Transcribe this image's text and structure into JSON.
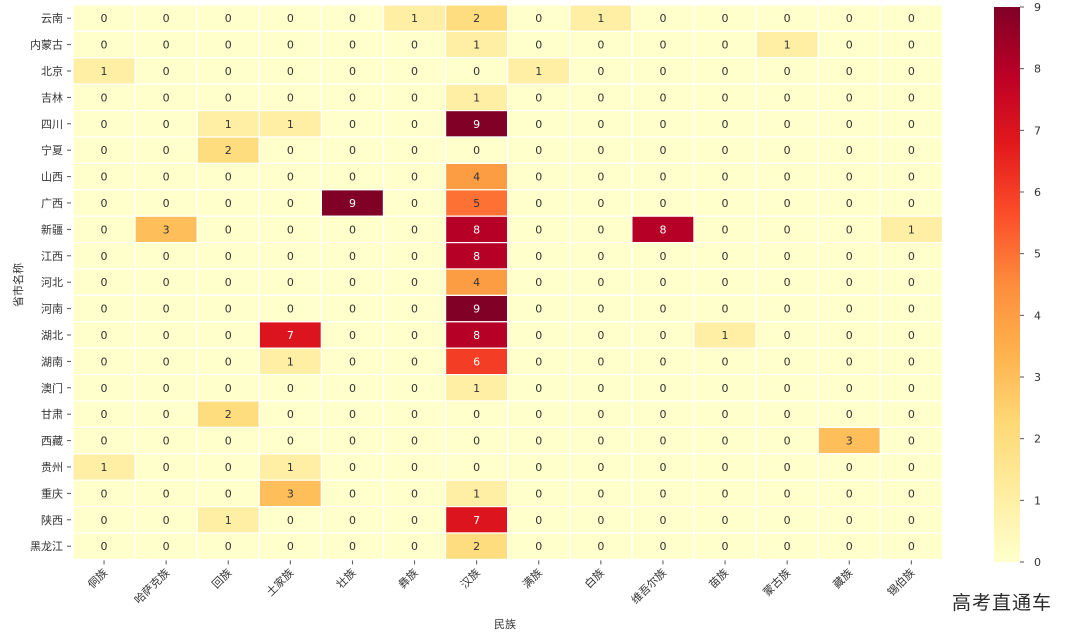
{
  "chart_data": {
    "type": "heatmap",
    "title": "",
    "xlabel": "民族",
    "ylabel": "省市名称",
    "x_categories": [
      "侗族",
      "哈萨克族",
      "回族",
      "土家族",
      "壮族",
      "彝族",
      "汉族",
      "满族",
      "白族",
      "维吾尔族",
      "苗族",
      "蒙古族",
      "藏族",
      "锡伯族"
    ],
    "y_categories": [
      "云南",
      "内蒙古",
      "北京",
      "吉林",
      "四川",
      "宁夏",
      "山西",
      "广西",
      "新疆",
      "江西",
      "河北",
      "河南",
      "湖北",
      "湖南",
      "澳门",
      "甘肃",
      "西藏",
      "贵州",
      "重庆",
      "陕西",
      "黑龙江"
    ],
    "values": [
      [
        0,
        0,
        0,
        0,
        0,
        1,
        2,
        0,
        1,
        0,
        0,
        0,
        0,
        0
      ],
      [
        0,
        0,
        0,
        0,
        0,
        0,
        1,
        0,
        0,
        0,
        0,
        1,
        0,
        0
      ],
      [
        1,
        0,
        0,
        0,
        0,
        0,
        0,
        1,
        0,
        0,
        0,
        0,
        0,
        0
      ],
      [
        0,
        0,
        0,
        0,
        0,
        0,
        1,
        0,
        0,
        0,
        0,
        0,
        0,
        0
      ],
      [
        0,
        0,
        1,
        1,
        0,
        0,
        9,
        0,
        0,
        0,
        0,
        0,
        0,
        0
      ],
      [
        0,
        0,
        2,
        0,
        0,
        0,
        0,
        0,
        0,
        0,
        0,
        0,
        0,
        0
      ],
      [
        0,
        0,
        0,
        0,
        0,
        0,
        4,
        0,
        0,
        0,
        0,
        0,
        0,
        0
      ],
      [
        0,
        0,
        0,
        0,
        9,
        0,
        5,
        0,
        0,
        0,
        0,
        0,
        0,
        0
      ],
      [
        0,
        3,
        0,
        0,
        0,
        0,
        8,
        0,
        0,
        8,
        0,
        0,
        0,
        1
      ],
      [
        0,
        0,
        0,
        0,
        0,
        0,
        8,
        0,
        0,
        0,
        0,
        0,
        0,
        0
      ],
      [
        0,
        0,
        0,
        0,
        0,
        0,
        4,
        0,
        0,
        0,
        0,
        0,
        0,
        0
      ],
      [
        0,
        0,
        0,
        0,
        0,
        0,
        9,
        0,
        0,
        0,
        0,
        0,
        0,
        0
      ],
      [
        0,
        0,
        0,
        7,
        0,
        0,
        8,
        0,
        0,
        0,
        1,
        0,
        0,
        0
      ],
      [
        0,
        0,
        0,
        1,
        0,
        0,
        6,
        0,
        0,
        0,
        0,
        0,
        0,
        0
      ],
      [
        0,
        0,
        0,
        0,
        0,
        0,
        1,
        0,
        0,
        0,
        0,
        0,
        0,
        0
      ],
      [
        0,
        0,
        2,
        0,
        0,
        0,
        0,
        0,
        0,
        0,
        0,
        0,
        0,
        0
      ],
      [
        0,
        0,
        0,
        0,
        0,
        0,
        0,
        0,
        0,
        0,
        0,
        0,
        3,
        0
      ],
      [
        1,
        0,
        0,
        1,
        0,
        0,
        0,
        0,
        0,
        0,
        0,
        0,
        0,
        0
      ],
      [
        0,
        0,
        0,
        3,
        0,
        0,
        1,
        0,
        0,
        0,
        0,
        0,
        0,
        0
      ],
      [
        0,
        0,
        1,
        0,
        0,
        0,
        7,
        0,
        0,
        0,
        0,
        0,
        0,
        0
      ],
      [
        0,
        0,
        0,
        0,
        0,
        0,
        2,
        0,
        0,
        0,
        0,
        0,
        0,
        0
      ]
    ],
    "vmin": 0,
    "vmax": 9,
    "colorbar_ticks": [
      0,
      1,
      2,
      3,
      4,
      5,
      6,
      7,
      8,
      9
    ],
    "colormap": "YlOrRd",
    "annotated": true
  },
  "watermark": "高考直通车"
}
